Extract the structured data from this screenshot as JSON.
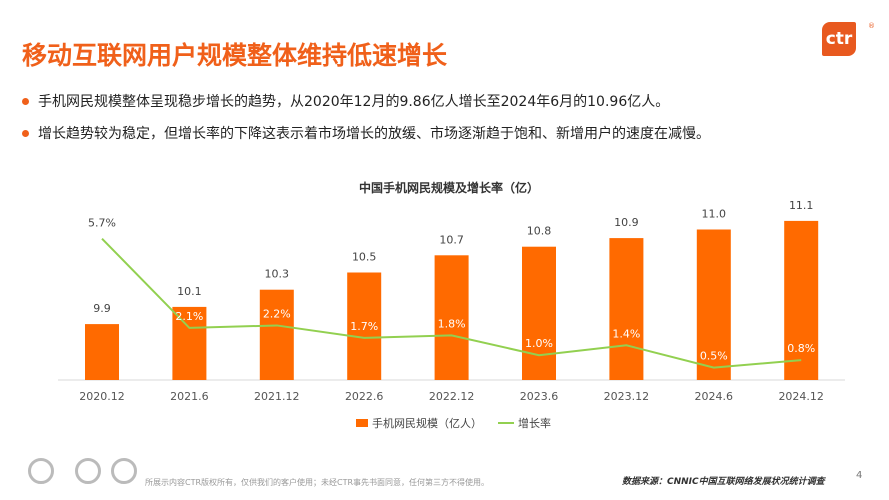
{
  "title": "移动互联网用户规模整体维持低速增长",
  "logo": "ctr",
  "bullets": [
    "手机网民规模整体呈现稳步增长的趋势，从2020年12月的9.86亿人增长至2024年6月的10.96亿人。",
    "增长趋势较为稳定，但增长率的下降这表示着市场增长的放缓、市场逐渐趋于饱和、新增用户的速度在减慢。"
  ],
  "footer": {
    "disclaimer": "所展示内容CTR版权所有，仅供我们的客户使用；未经CTR事先书面同意，任何第三方不得使用。",
    "source": "数据来源：CNNIC中国互联网络发展状况统计调查",
    "page": "4"
  },
  "colors": {
    "accent": "#F0601A",
    "bar": "#FF6A00",
    "line": "#92D050"
  },
  "chart_data": {
    "type": "bar+line",
    "title": "中国手机网民规模及增长率（亿）",
    "categories": [
      "2020.12",
      "2021.6",
      "2021.12",
      "2022.6",
      "2022.12",
      "2023.6",
      "2023.12",
      "2024.6",
      "2024.12"
    ],
    "series": [
      {
        "name": "手机网民规模（亿人）",
        "type": "bar",
        "values": [
          9.9,
          10.1,
          10.3,
          10.5,
          10.7,
          10.8,
          10.9,
          11.0,
          11.1
        ],
        "labels": [
          "9.9",
          "10.1",
          "10.3",
          "10.5",
          "10.7",
          "10.8",
          "10.9",
          "11.0",
          "11.1"
        ]
      },
      {
        "name": "增长率",
        "type": "line",
        "values": [
          5.7,
          2.1,
          2.2,
          1.7,
          1.8,
          1.0,
          1.4,
          0.5,
          0.8
        ],
        "labels": [
          "5.7%",
          "2.1%",
          "2.2%",
          "1.7%",
          "1.8%",
          "1.0%",
          "1.4%",
          "0.5%",
          "0.8%"
        ]
      }
    ],
    "legend": "bottom",
    "grid": false
  }
}
